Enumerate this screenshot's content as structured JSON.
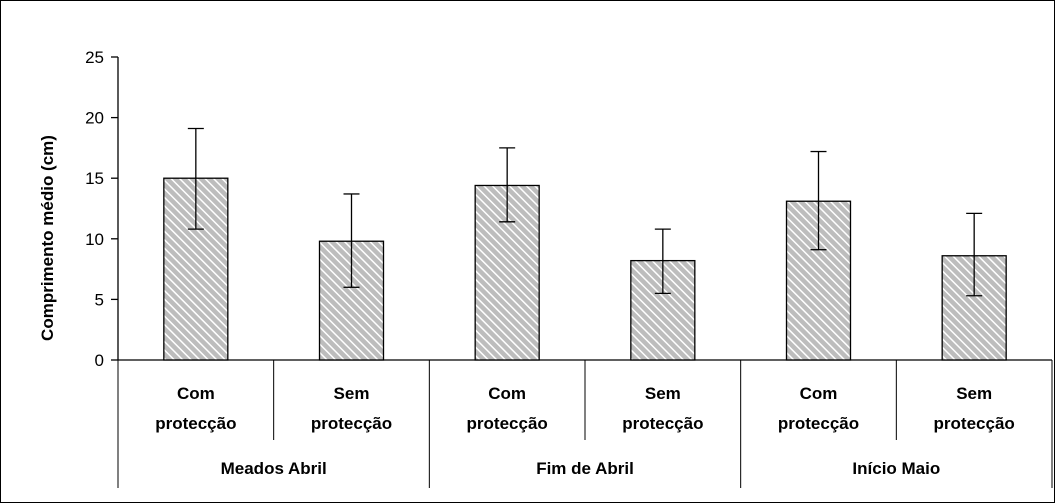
{
  "chart_data": {
    "type": "bar",
    "ylabel": "Comprimento médio (cm)",
    "ylim": [
      0,
      25
    ],
    "yticks": [
      0,
      5,
      10,
      15,
      20,
      25
    ],
    "grid": false,
    "legend": "none",
    "groups": [
      {
        "label": "Meados Abril",
        "bars": [
          {
            "label_line1": "Com",
            "label_line2": "protecção",
            "value": 15.0,
            "err_low": 10.8,
            "err_high": 19.1
          },
          {
            "label_line1": "Sem",
            "label_line2": "protecção",
            "value": 9.8,
            "err_low": 6.0,
            "err_high": 13.7
          }
        ]
      },
      {
        "label": "Fim de Abril",
        "bars": [
          {
            "label_line1": "Com",
            "label_line2": "protecção",
            "value": 14.4,
            "err_low": 11.4,
            "err_high": 17.5
          },
          {
            "label_line1": "Sem",
            "label_line2": "protecção",
            "value": 8.2,
            "err_low": 5.5,
            "err_high": 10.8
          }
        ]
      },
      {
        "label": "Início Maio",
        "bars": [
          {
            "label_line1": "Com",
            "label_line2": "protecção",
            "value": 13.1,
            "err_low": 9.1,
            "err_high": 17.2
          },
          {
            "label_line1": "Sem",
            "label_line2": "protecção",
            "value": 8.6,
            "err_low": 5.3,
            "err_high": 12.1
          }
        ]
      }
    ],
    "colors": {
      "bar_fill": "#c8c8c8",
      "bar_hatch": "#ffffff",
      "stroke": "#000000"
    }
  }
}
